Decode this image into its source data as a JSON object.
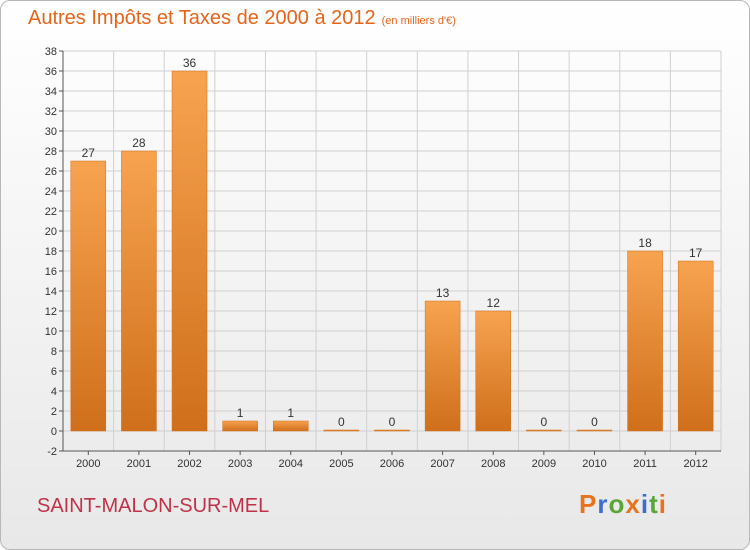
{
  "chart_data": {
    "type": "bar",
    "title": "Autres Impôts et Taxes de 2000 à 2012",
    "subtitle": "(en milliers d'€)",
    "categories": [
      "2000",
      "2001",
      "2002",
      "2003",
      "2004",
      "2005",
      "2006",
      "2007",
      "2008",
      "2009",
      "2010",
      "2011",
      "2012"
    ],
    "values": [
      27,
      28,
      36,
      1,
      1,
      0,
      0,
      13,
      12,
      0,
      0,
      18,
      17
    ],
    "xlabel": "",
    "ylabel": "",
    "ylim": [
      -2,
      38
    ],
    "yticks": [
      -2,
      0,
      2,
      4,
      6,
      8,
      10,
      12,
      14,
      16,
      18,
      20,
      22,
      24,
      26,
      28,
      30,
      32,
      34,
      36,
      38
    ],
    "grid": true,
    "legend": "none"
  },
  "footer": {
    "commune": "SAINT-MALON-SUR-MEL",
    "logo": "Proxiti"
  },
  "colors": {
    "title": "#e4641a",
    "commune": "#c0324a",
    "bar_light": "#f7a350",
    "bar_dark": "#cf6f1b",
    "grid": "#d0d0d0",
    "logo_letters": [
      "#e8731f",
      "#3b6fcf",
      "#5aa63a",
      "#e8731f",
      "#3b6fcf",
      "#5aa63a",
      "#e8731f"
    ]
  }
}
